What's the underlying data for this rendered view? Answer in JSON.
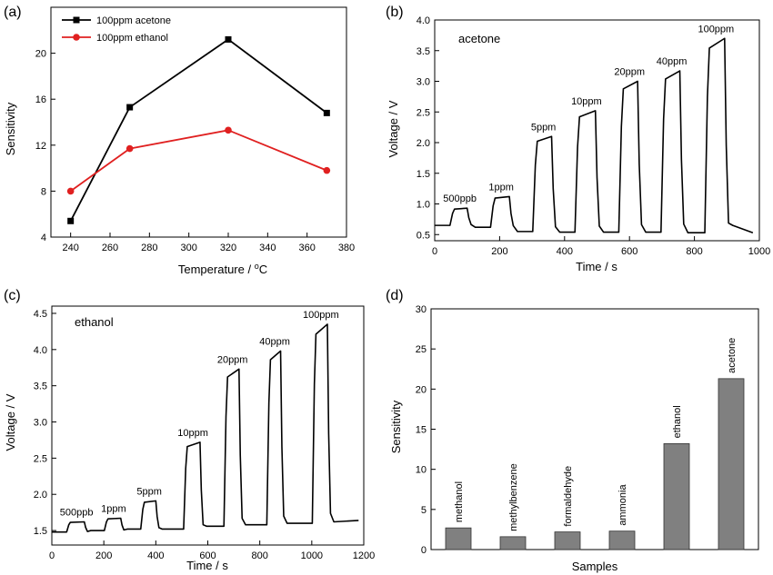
{
  "chart_data": [
    {
      "panel": "(a)",
      "type": "line",
      "xlabel": "Temperature / ",
      "xlabel_unit": "C",
      "ylabel": "Sensitivity",
      "xlim": [
        230,
        380
      ],
      "ylim": [
        4,
        24
      ],
      "xticks": [
        240,
        260,
        280,
        300,
        320,
        340,
        360,
        380
      ],
      "yticks": [
        4,
        8,
        12,
        16,
        20
      ],
      "legend_placement": "top-left",
      "series": [
        {
          "name": "100ppm acetone",
          "color": "#000000",
          "marker": "square",
          "x": [
            240,
            270,
            320,
            370
          ],
          "y": [
            5.4,
            15.3,
            21.2,
            14.8
          ]
        },
        {
          "name": "100ppm ethanol",
          "color": "#e02020",
          "marker": "circle",
          "x": [
            240,
            270,
            320,
            370
          ],
          "y": [
            8.0,
            11.7,
            13.3,
            9.8
          ]
        }
      ]
    },
    {
      "panel": "(b)",
      "type": "line",
      "title": "acetone",
      "xlabel": "Time / s",
      "ylabel": "Voltage / V",
      "xlim": [
        0,
        1000
      ],
      "ylim": [
        0.4,
        4.0
      ],
      "xticks": [
        0,
        200,
        400,
        600,
        800,
        1000
      ],
      "yticks": [
        0.5,
        1.0,
        1.5,
        2.0,
        2.5,
        3.0,
        3.5,
        4.0
      ],
      "baseline": [
        0.65,
        0.62,
        0.55,
        0.54,
        0.54,
        0.54,
        0.53,
        0.65
      ],
      "pulses": [
        {
          "label": "500ppb",
          "start": 55,
          "end": 100,
          "level": 0.93
        },
        {
          "label": "1ppm",
          "start": 180,
          "end": 230,
          "level": 1.12
        },
        {
          "label": "5ppm",
          "start": 310,
          "end": 360,
          "level": 2.1
        },
        {
          "label": "10ppm",
          "start": 440,
          "end": 495,
          "level": 2.52
        },
        {
          "label": "20ppm",
          "start": 575,
          "end": 625,
          "level": 3.0
        },
        {
          "label": "40ppm",
          "start": 705,
          "end": 755,
          "level": 3.17
        },
        {
          "label": "100ppm",
          "start": 840,
          "end": 893,
          "level": 3.7
        }
      ],
      "end_time": 980,
      "end_level": 0.53
    },
    {
      "panel": "(c)",
      "type": "line",
      "title": "ethanol",
      "xlabel": "Time / s",
      "ylabel": "Voltage / V",
      "xlim": [
        0,
        1200
      ],
      "ylim": [
        1.3,
        4.6
      ],
      "xticks": [
        0,
        200,
        400,
        600,
        800,
        1000,
        1200
      ],
      "yticks": [
        1.5,
        2.0,
        2.5,
        3.0,
        3.5,
        4.0,
        4.5
      ],
      "baseline": [
        1.48,
        1.5,
        1.52,
        1.52,
        1.56,
        1.58,
        1.6,
        1.62
      ],
      "pulses": [
        {
          "label": "500ppb",
          "start": 65,
          "end": 125,
          "level": 1.62
        },
        {
          "label": "1ppm",
          "start": 210,
          "end": 265,
          "level": 1.67
        },
        {
          "label": "5ppm",
          "start": 350,
          "end": 400,
          "level": 1.91
        },
        {
          "label": "10ppm",
          "start": 515,
          "end": 570,
          "level": 2.72
        },
        {
          "label": "20ppm",
          "start": 670,
          "end": 720,
          "level": 3.73
        },
        {
          "label": "40ppm",
          "start": 835,
          "end": 880,
          "level": 3.98
        },
        {
          "label": "100ppm",
          "start": 1010,
          "end": 1060,
          "level": 4.35
        }
      ],
      "end_time": 1180,
      "end_level": 1.64
    },
    {
      "panel": "(d)",
      "type": "bar",
      "xlabel": "Samples",
      "ylabel": "Sensitivity",
      "ylim": [
        0,
        30
      ],
      "yticks": [
        0,
        5,
        10,
        15,
        20,
        25,
        30
      ],
      "bar_color": "#808080",
      "categories": [
        "methanol",
        "methylbenzene",
        "formaldehyde",
        "ammonia",
        "ethanol",
        "acetone"
      ],
      "values": [
        2.7,
        1.6,
        2.2,
        2.3,
        13.2,
        21.3
      ]
    }
  ]
}
